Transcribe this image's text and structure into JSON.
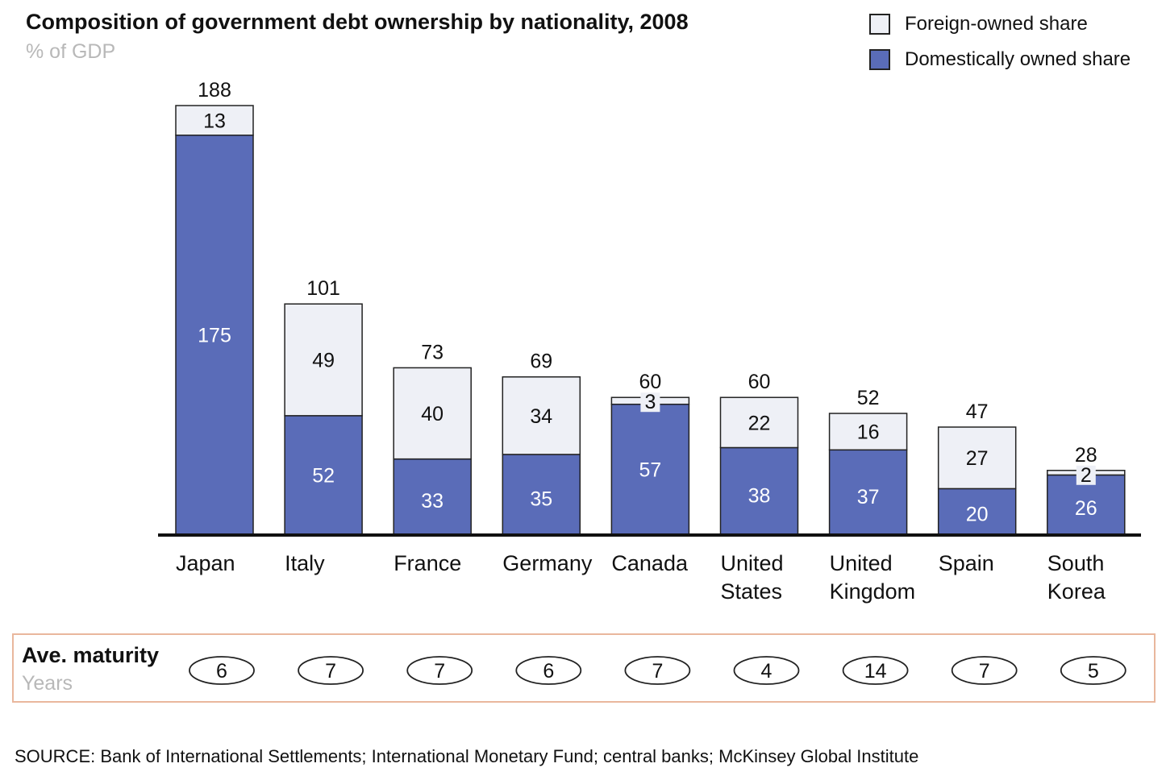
{
  "chart_data": {
    "type": "bar",
    "stacked": true,
    "title": "Composition of government debt ownership by nationality, 2008",
    "ylabel": "% of GDP",
    "categories": [
      [
        "Japan"
      ],
      [
        "Italy"
      ],
      [
        "France"
      ],
      [
        "Germany"
      ],
      [
        "Canada"
      ],
      [
        "United",
        "States"
      ],
      [
        "United",
        "Kingdom"
      ],
      [
        "Spain"
      ],
      [
        "South",
        "Korea"
      ]
    ],
    "series": [
      {
        "name": "Domestically owned share",
        "color": "#5a6cb8",
        "values": [
          175,
          52,
          33,
          35,
          57,
          38,
          37,
          20,
          26
        ]
      },
      {
        "name": "Foreign-owned share",
        "color": "#eef0f6",
        "values": [
          13,
          49,
          40,
          34,
          3,
          22,
          16,
          27,
          2
        ]
      }
    ],
    "totals": [
      188,
      101,
      73,
      69,
      60,
      60,
      52,
      47,
      28
    ],
    "ylim": [
      0,
      188
    ],
    "legend": "top-right",
    "maturity": {
      "label": "Ave. maturity",
      "unit": "Years",
      "values": [
        6,
        7,
        7,
        6,
        7,
        4,
        14,
        7,
        5
      ]
    },
    "source": "SOURCE: Bank of International Settlements; International Monetary Fund; central banks; McKinsey Global Institute"
  }
}
